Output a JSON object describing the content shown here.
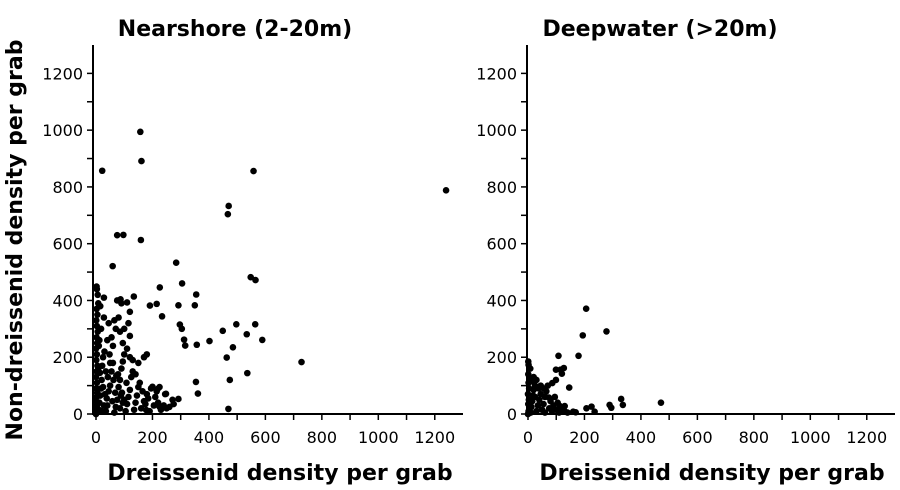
{
  "chart_data": [
    {
      "type": "scatter",
      "title": "Nearshore (2-20m)",
      "xlabel": "Dreissenid density per grab",
      "ylabel": "Non-dreissenid density per grab",
      "xlim": [
        0,
        1300
      ],
      "ylim": [
        0,
        1300
      ],
      "xticks": [
        0,
        200,
        400,
        600,
        800,
        1000,
        1200
      ],
      "yticks": [
        0,
        200,
        400,
        600,
        800,
        1000,
        1200
      ],
      "grid": false,
      "color": "#000000",
      "points": [
        [
          157,
          994
        ],
        [
          161,
          891
        ],
        [
          22,
          857
        ],
        [
          558,
          856
        ],
        [
          1240,
          788
        ],
        [
          470,
          733
        ],
        [
          467,
          704
        ],
        [
          75,
          630
        ],
        [
          97,
          631
        ],
        [
          159,
          613
        ],
        [
          59,
          521
        ],
        [
          284,
          533
        ],
        [
          548,
          482
        ],
        [
          565,
          472
        ],
        [
          305,
          460
        ],
        [
          226,
          446
        ],
        [
          355,
          421
        ],
        [
          134,
          414
        ],
        [
          87,
          404
        ],
        [
          110,
          393
        ],
        [
          215,
          388
        ],
        [
          191,
          382
        ],
        [
          292,
          383
        ],
        [
          350,
          383
        ],
        [
          2,
          449
        ],
        [
          28,
          410
        ],
        [
          234,
          344
        ],
        [
          297,
          315
        ],
        [
          304,
          300
        ],
        [
          312,
          262
        ],
        [
          316,
          241
        ],
        [
          357,
          244
        ],
        [
          402,
          257
        ],
        [
          449,
          293
        ],
        [
          497,
          316
        ],
        [
          564,
          316
        ],
        [
          534,
          281
        ],
        [
          589,
          261
        ],
        [
          485,
          235
        ],
        [
          463,
          199
        ],
        [
          536,
          144
        ],
        [
          474,
          120
        ],
        [
          354,
          113
        ],
        [
          361,
          72
        ],
        [
          469,
          18
        ],
        [
          292,
          53
        ],
        [
          728,
          183
        ],
        [
          200,
          96
        ],
        [
          218,
          88
        ],
        [
          248,
          71
        ],
        [
          271,
          50
        ],
        [
          225,
          26
        ],
        [
          178,
          14
        ],
        [
          0,
          0
        ],
        [
          2,
          5
        ],
        [
          5,
          12
        ],
        [
          1,
          20
        ],
        [
          3,
          30
        ],
        [
          0,
          45
        ],
        [
          2,
          60
        ],
        [
          4,
          75
        ],
        [
          1,
          90
        ],
        [
          3,
          110
        ],
        [
          0,
          130
        ],
        [
          2,
          150
        ],
        [
          5,
          170
        ],
        [
          1,
          190
        ],
        [
          3,
          210
        ],
        [
          0,
          230
        ],
        [
          4,
          250
        ],
        [
          2,
          270
        ],
        [
          6,
          290
        ],
        [
          3,
          310
        ],
        [
          1,
          330
        ],
        [
          5,
          350
        ],
        [
          2,
          370
        ],
        [
          8,
          390
        ],
        [
          10,
          15
        ],
        [
          12,
          40
        ],
        [
          15,
          65
        ],
        [
          18,
          90
        ],
        [
          20,
          120
        ],
        [
          14,
          145
        ],
        [
          22,
          170
        ],
        [
          25,
          200
        ],
        [
          30,
          220
        ],
        [
          10,
          240
        ],
        [
          35,
          10
        ],
        [
          40,
          30
        ],
        [
          38,
          55
        ],
        [
          45,
          80
        ],
        [
          50,
          100
        ],
        [
          42,
          130
        ],
        [
          55,
          150
        ],
        [
          60,
          180
        ],
        [
          48,
          210
        ],
        [
          65,
          5
        ],
        [
          70,
          25
        ],
        [
          75,
          50
        ],
        [
          68,
          75
        ],
        [
          80,
          95
        ],
        [
          85,
          120
        ],
        [
          78,
          140
        ],
        [
          90,
          160
        ],
        [
          95,
          185
        ],
        [
          100,
          210
        ],
        [
          105,
          10
        ],
        [
          110,
          35
        ],
        [
          115,
          60
        ],
        [
          120,
          85
        ],
        [
          108,
          110
        ],
        [
          125,
          130
        ],
        [
          130,
          150
        ],
        [
          95,
          40
        ],
        [
          88,
          65
        ],
        [
          28,
          30
        ],
        [
          32,
          70
        ],
        [
          25,
          95
        ],
        [
          58,
          45
        ],
        [
          62,
          120
        ],
        [
          72,
          135
        ],
        [
          85,
          20
        ],
        [
          92,
          75
        ],
        [
          100,
          50
        ],
        [
          135,
          15
        ],
        [
          140,
          40
        ],
        [
          145,
          65
        ],
        [
          150,
          95
        ],
        [
          160,
          20
        ],
        [
          170,
          45
        ],
        [
          180,
          70
        ],
        [
          190,
          10
        ],
        [
          155,
          110
        ],
        [
          165,
          80
        ],
        [
          175,
          35
        ],
        [
          185,
          55
        ],
        [
          195,
          90
        ],
        [
          205,
          30
        ],
        [
          210,
          60
        ],
        [
          220,
          40
        ],
        [
          230,
          15
        ],
        [
          240,
          30
        ],
        [
          250,
          20
        ],
        [
          260,
          25
        ],
        [
          275,
          35
        ],
        [
          20,
          10
        ],
        [
          8,
          160
        ],
        [
          12,
          260
        ],
        [
          18,
          300
        ],
        [
          28,
          340
        ],
        [
          45,
          320
        ],
        [
          55,
          270
        ],
        [
          70,
          300
        ],
        [
          80,
          340
        ],
        [
          95,
          250
        ],
        [
          60,
          240
        ],
        [
          40,
          260
        ],
        [
          110,
          230
        ],
        [
          120,
          200
        ],
        [
          130,
          190
        ],
        [
          100,
          300
        ],
        [
          115,
          320
        ],
        [
          75,
          400
        ],
        [
          90,
          390
        ],
        [
          120,
          360
        ],
        [
          15,
          380
        ],
        [
          6,
          420
        ],
        [
          3,
          440
        ],
        [
          140,
          140
        ],
        [
          150,
          180
        ],
        [
          170,
          200
        ],
        [
          180,
          210
        ],
        [
          120,
          275
        ],
        [
          85,
          290
        ],
        [
          65,
          330
        ],
        [
          50,
          180
        ],
        [
          35,
          150
        ],
        [
          215,
          80
        ],
        [
          225,
          95
        ],
        [
          245,
          70
        ]
      ]
    },
    {
      "type": "scatter",
      "title": "Deepwater (>20m)",
      "xlabel": "Dreissenid density per grab",
      "ylabel": "",
      "xlim": [
        0,
        1300
      ],
      "ylim": [
        0,
        1300
      ],
      "xticks": [
        0,
        200,
        400,
        600,
        800,
        1000,
        1200
      ],
      "yticks": [
        0,
        200,
        400,
        600,
        800,
        1000,
        1200
      ],
      "grid": false,
      "color": "#000000",
      "points": [
        [
          206,
          371
        ],
        [
          278,
          291
        ],
        [
          194,
          277
        ],
        [
          108,
          205
        ],
        [
          179,
          205
        ],
        [
          127,
          162
        ],
        [
          115,
          156
        ],
        [
          99,
          156
        ],
        [
          120,
          142
        ],
        [
          99,
          120
        ],
        [
          146,
          93
        ],
        [
          86,
          109
        ],
        [
          471,
          40
        ],
        [
          330,
          53
        ],
        [
          336,
          32
        ],
        [
          289,
          32
        ],
        [
          295,
          22
        ],
        [
          74,
          58
        ],
        [
          1,
          185
        ],
        [
          2,
          173
        ],
        [
          207,
          20
        ],
        [
          225,
          26
        ],
        [
          236,
          8
        ],
        [
          169,
          6
        ],
        [
          113,
          28
        ],
        [
          130,
          28
        ],
        [
          0,
          0
        ],
        [
          2,
          10
        ],
        [
          5,
          20
        ],
        [
          1,
          35
        ],
        [
          3,
          50
        ],
        [
          0,
          70
        ],
        [
          4,
          90
        ],
        [
          2,
          110
        ],
        [
          6,
          125
        ],
        [
          1,
          140
        ],
        [
          10,
          5
        ],
        [
          12,
          25
        ],
        [
          15,
          45
        ],
        [
          18,
          65
        ],
        [
          20,
          85
        ],
        [
          25,
          100
        ],
        [
          14,
          115
        ],
        [
          30,
          10
        ],
        [
          35,
          30
        ],
        [
          40,
          50
        ],
        [
          45,
          70
        ],
        [
          38,
          90
        ],
        [
          50,
          15
        ],
        [
          55,
          35
        ],
        [
          60,
          60
        ],
        [
          65,
          80
        ],
        [
          70,
          100
        ],
        [
          75,
          20
        ],
        [
          80,
          45
        ],
        [
          85,
          10
        ],
        [
          90,
          30
        ],
        [
          100,
          15
        ],
        [
          110,
          5
        ],
        [
          120,
          20
        ],
        [
          130,
          10
        ],
        [
          140,
          5
        ],
        [
          160,
          8
        ],
        [
          25,
          60
        ],
        [
          30,
          120
        ],
        [
          45,
          100
        ],
        [
          55,
          90
        ],
        [
          8,
          160
        ],
        [
          20,
          130
        ],
        [
          60,
          5
        ],
        [
          95,
          60
        ],
        [
          105,
          40
        ]
      ]
    }
  ]
}
